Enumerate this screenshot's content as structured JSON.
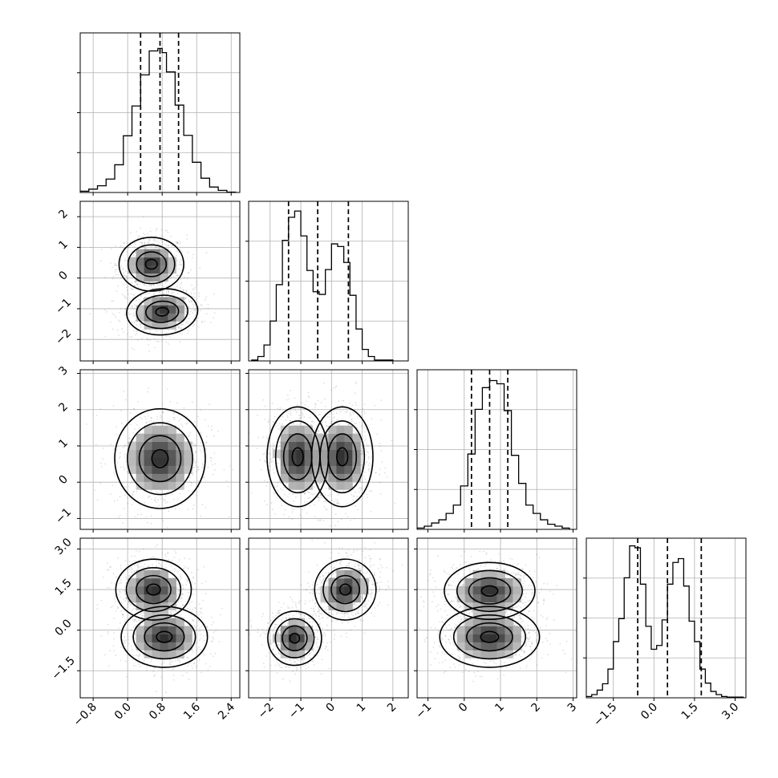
{
  "chart_data": {
    "type": "corner",
    "grid": true,
    "quantiles": [
      0.16,
      0.5,
      0.84
    ],
    "params": [
      {
        "range": [
          -1.1,
          2.6
        ],
        "ticks": [
          -0.8,
          0.0,
          0.8,
          1.6,
          2.4
        ],
        "tick_labels": [
          "−0.8",
          "0.0",
          "0.8",
          "1.6",
          "2.4"
        ],
        "hist_edges": [
          -1.1,
          -0.9,
          -0.7,
          -0.5,
          -0.3,
          -0.1,
          0.1,
          0.3,
          0.5,
          0.7,
          0.8,
          0.9,
          1.1,
          1.3,
          1.5,
          1.7,
          1.9,
          2.1,
          2.3,
          2.5
        ],
        "hist_counts": [
          0.3,
          0.8,
          1.6,
          3.2,
          6.6,
          13.5,
          20.6,
          28.0,
          33.7,
          34.3,
          33.3,
          28.7,
          20.8,
          13.6,
          7.2,
          3.4,
          1.3,
          0.5,
          0.1
        ],
        "hist_max": 38,
        "quantile_values": [
          0.3,
          0.75,
          1.18
        ]
      },
      {
        "range": [
          -2.7,
          2.5
        ],
        "ticks": [
          -2,
          -1,
          0,
          1,
          2
        ],
        "tick_labels": [
          "−2",
          "−1",
          "0",
          "1",
          "2"
        ],
        "hist_edges": [
          -2.6,
          -2.4,
          -2.2,
          -2.0,
          -1.8,
          -1.6,
          -1.4,
          -1.2,
          -1.0,
          -0.8,
          -0.6,
          -0.4,
          -0.2,
          0.0,
          0.2,
          0.4,
          0.6,
          0.8,
          1.0,
          1.2,
          1.4,
          1.6,
          1.8,
          2.0
        ],
        "hist_counts": [
          0.1,
          0.5,
          1.8,
          4.5,
          8.6,
          13.6,
          16.2,
          16.9,
          14.1,
          10.2,
          7.8,
          7.5,
          10.3,
          13.2,
          12.9,
          11.1,
          7.4,
          3.6,
          1.3,
          0.5,
          0.1,
          0.1,
          0.1
        ],
        "hist_max": 18,
        "quantile_values": [
          -1.4,
          -0.45,
          0.55
        ]
      },
      {
        "range": [
          -1.3,
          3.1
        ],
        "ticks": [
          -1,
          0,
          1,
          2,
          3
        ],
        "tick_labels": [
          "−1",
          "0",
          "1",
          "2",
          "3"
        ],
        "hist_edges": [
          -1.3,
          -1.1,
          -0.9,
          -0.7,
          -0.5,
          -0.3,
          -0.1,
          0.1,
          0.3,
          0.5,
          0.7,
          0.9,
          1.1,
          1.3,
          1.5,
          1.7,
          1.9,
          2.1,
          2.3,
          2.5,
          2.7,
          2.9
        ],
        "hist_counts": [
          0.2,
          0.5,
          1.0,
          1.5,
          2.5,
          3.8,
          6.8,
          11.8,
          18.8,
          22.2,
          23.3,
          22.8,
          18.6,
          11.6,
          7.2,
          3.8,
          2.5,
          1.5,
          0.8,
          0.5,
          0.2
        ],
        "hist_max": 25,
        "quantile_values": [
          0.2,
          0.7,
          1.2
        ]
      },
      {
        "range": [
          -2.5,
          3.4
        ],
        "ticks": [
          -1.5,
          0.0,
          1.5,
          3.0
        ],
        "tick_labels": [
          "−1.5",
          "0.0",
          "1.5",
          "3.0"
        ],
        "hist_edges": [
          -2.5,
          -2.3,
          -2.1,
          -1.9,
          -1.7,
          -1.5,
          -1.3,
          -1.1,
          -0.9,
          -0.7,
          -0.5,
          -0.3,
          -0.1,
          0.1,
          0.3,
          0.5,
          0.7,
          0.9,
          1.1,
          1.3,
          1.5,
          1.7,
          1.9,
          2.1,
          2.3,
          2.5,
          2.7,
          2.9,
          3.1,
          3.3
        ],
        "hist_counts": [
          0.2,
          0.5,
          1.2,
          2.2,
          4.5,
          8.8,
          12.4,
          18.8,
          23.8,
          23.5,
          17.8,
          11.2,
          7.6,
          8.2,
          12.2,
          17.8,
          21.2,
          21.8,
          17.5,
          12.0,
          8.8,
          4.5,
          2.3,
          1.0,
          0.5,
          0.2,
          0.1,
          0.1,
          0.1
        ],
        "hist_max": 25,
        "quantile_values": [
          -0.6,
          0.5,
          1.75
        ]
      }
    ],
    "pairs": [
      {
        "row": 1,
        "col": 0,
        "modes": [
          [
            0.55,
            0.45,
            0.3,
            0.35,
            0.0
          ],
          [
            0.8,
            -1.1,
            0.33,
            0.3,
            0.15
          ]
        ]
      },
      {
        "row": 2,
        "col": 0,
        "modes": [
          [
            0.75,
            0.65,
            0.42,
            0.55,
            0.0
          ]
        ]
      },
      {
        "row": 2,
        "col": 1,
        "modes": [
          [
            -1.1,
            0.7,
            0.4,
            0.55,
            0.0
          ],
          [
            0.35,
            0.7,
            0.4,
            0.55,
            0.0
          ]
        ]
      },
      {
        "row": 3,
        "col": 0,
        "modes": [
          [
            0.6,
            1.5,
            0.35,
            0.45,
            0.0
          ],
          [
            0.85,
            -0.25,
            0.4,
            0.45,
            0.0
          ]
        ]
      },
      {
        "row": 3,
        "col": 1,
        "modes": [
          [
            -1.2,
            -0.3,
            0.35,
            0.4,
            0.0
          ],
          [
            0.45,
            1.5,
            0.4,
            0.45,
            0.2
          ]
        ]
      },
      {
        "row": 3,
        "col": 2,
        "modes": [
          [
            0.7,
            1.45,
            0.5,
            0.42,
            0.0
          ],
          [
            0.7,
            -0.25,
            0.55,
            0.45,
            0.0
          ]
        ]
      }
    ]
  }
}
